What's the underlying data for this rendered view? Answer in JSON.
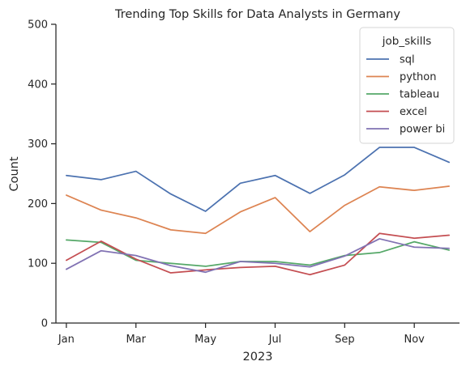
{
  "chart_data": {
    "type": "line",
    "title": "Trending Top Skills for Data Analysts in Germany",
    "xlabel": "2023",
    "ylabel": "Count",
    "x_ticks": [
      "Jan",
      "Mar",
      "May",
      "Jul",
      "Sep",
      "Nov"
    ],
    "x_tick_months": [
      1,
      3,
      5,
      7,
      9,
      11
    ],
    "months": [
      1,
      2,
      3,
      4,
      5,
      6,
      7,
      8,
      9,
      10,
      11,
      12
    ],
    "xlim": [
      0.7,
      12.3
    ],
    "ylim": [
      0,
      500
    ],
    "y_ticks": [
      0,
      100,
      200,
      300,
      400,
      500
    ],
    "grid": false,
    "legend": {
      "title": "job_skills",
      "placement": "top-right"
    },
    "series": [
      {
        "name": "sql",
        "color": "#4c72b0",
        "values": [
          247,
          240,
          254,
          216,
          187,
          234,
          247,
          217,
          248,
          294,
          294,
          269
        ]
      },
      {
        "name": "python",
        "color": "#dd8452",
        "values": [
          214,
          189,
          176,
          156,
          150,
          186,
          210,
          153,
          197,
          228,
          222,
          229
        ]
      },
      {
        "name": "tableau",
        "color": "#55a868",
        "values": [
          139,
          135,
          105,
          100,
          95,
          103,
          103,
          97,
          113,
          118,
          136,
          122
        ]
      },
      {
        "name": "excel",
        "color": "#c44e52",
        "values": [
          105,
          137,
          107,
          84,
          89,
          93,
          95,
          81,
          97,
          150,
          142,
          147
        ]
      },
      {
        "name": "power bi",
        "color": "#8172b3",
        "values": [
          90,
          121,
          113,
          96,
          85,
          103,
          100,
          94,
          112,
          141,
          127,
          125
        ]
      }
    ]
  }
}
